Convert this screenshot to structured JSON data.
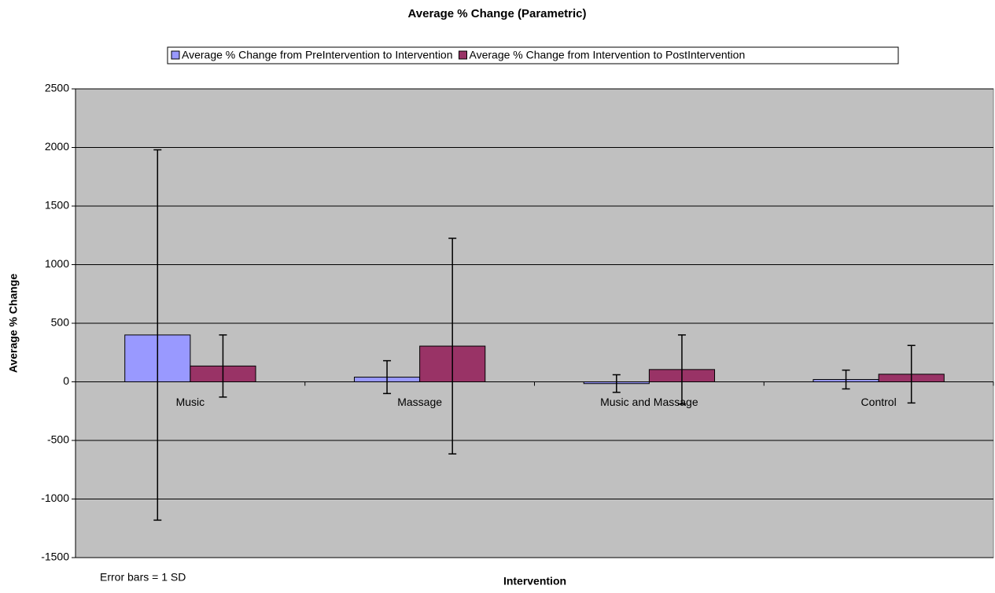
{
  "chart_data": {
    "type": "bar",
    "title": "Average % Change (Parametric)",
    "x_label": "Intervention",
    "y_label": "Average % Change",
    "annotation": "Error bars = 1 SD",
    "categories": [
      "Music",
      "Massage",
      "Music and Massage",
      "Control"
    ],
    "series": [
      {
        "name": "Average % Change from PreIntervention to Intervention",
        "color": "#9999ff",
        "values": [
          400,
          40,
          -15,
          20
        ],
        "errors": [
          1580,
          140,
          75,
          80
        ]
      },
      {
        "name": "Average % Change from Intervention to PostIntervention",
        "color": "#993366",
        "values": [
          135,
          305,
          105,
          65
        ],
        "errors": [
          265,
          920,
          295,
          245
        ]
      }
    ],
    "ylim": [
      -1500,
      2500
    ],
    "yticks": [
      -1500,
      -1000,
      -500,
      0,
      500,
      1000,
      1500,
      2000,
      2500
    ],
    "grid": true,
    "plot_background": "#c0c0c0"
  }
}
